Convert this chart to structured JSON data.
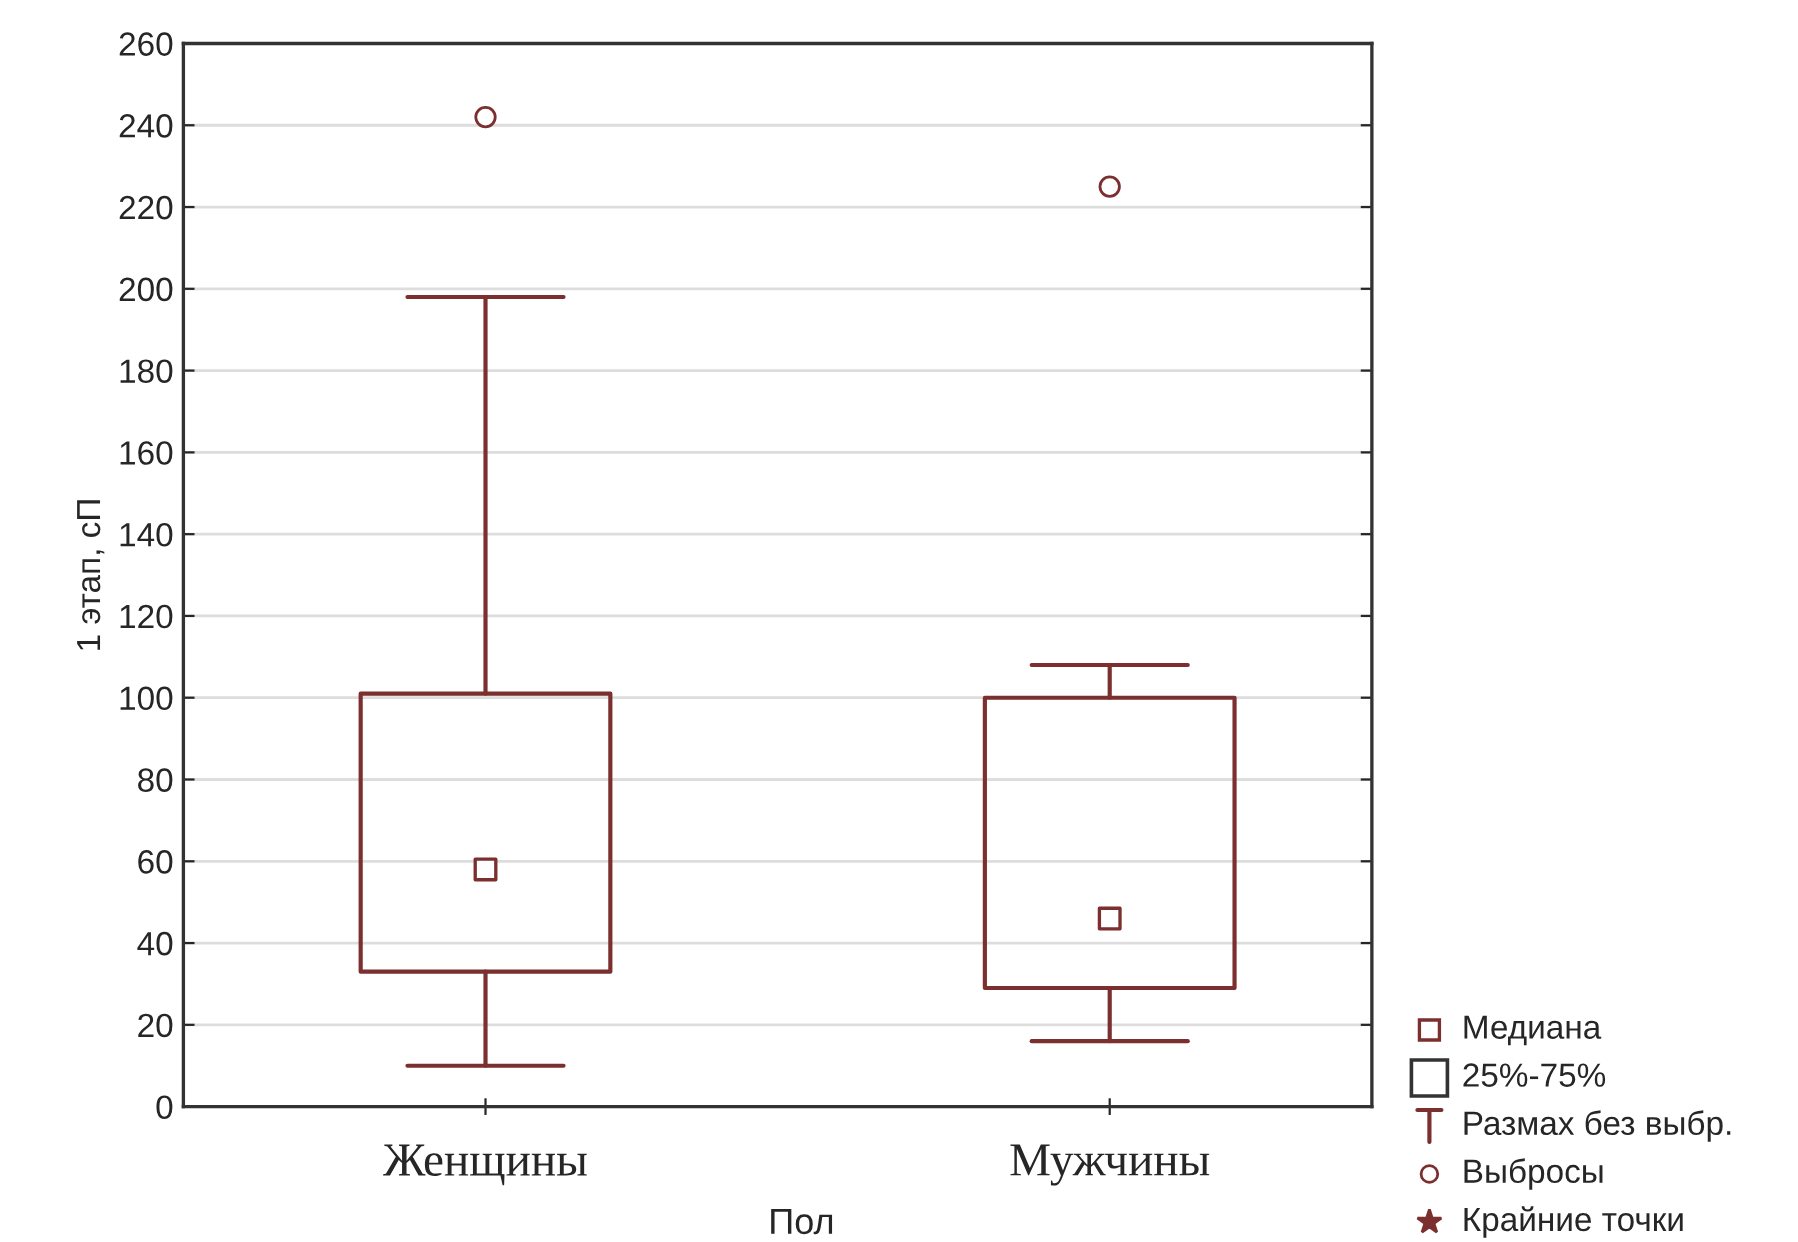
{
  "chart_data": {
    "type": "box",
    "xlabel": "Пол",
    "ylabel": "1 этап, сП",
    "categories": [
      "Женщины",
      "Мужчины"
    ],
    "boxes": [
      {
        "low": 10,
        "q1": 33,
        "median": 58,
        "q3": 101,
        "high": 198,
        "outliers": [
          242
        ]
      },
      {
        "low": 16,
        "q1": 29,
        "median": 46,
        "q3": 100,
        "high": 108,
        "outliers": [
          225
        ]
      }
    ],
    "color": "#7b2f2f",
    "ylim": [
      0,
      260
    ],
    "yticks": [
      0,
      20,
      40,
      60,
      80,
      100,
      120,
      140,
      160,
      180,
      200,
      220,
      240,
      260
    ],
    "grid": "y",
    "annotations": [
      "Медиана",
      "25%-75%",
      "Размах без выбр.",
      "Выбросы",
      "Крайние точки"
    ]
  }
}
